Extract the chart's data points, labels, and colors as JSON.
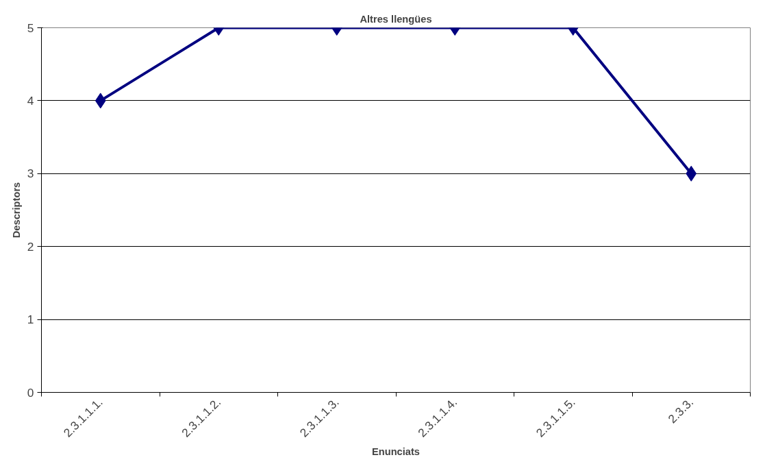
{
  "chart_data": {
    "type": "line",
    "title": "Altres llengües",
    "xlabel": "Enunciats",
    "ylabel": "Descriptors",
    "categories": [
      "2.3.1.1.1.",
      "2.3.1.1.2.",
      "2.3.1.1.3.",
      "2.3.1.1.4.",
      "2.3.1.1.5.",
      "2.3.3."
    ],
    "series": [
      {
        "color": "#000080",
        "values": [
          4,
          5,
          5,
          5,
          5,
          3
        ]
      }
    ],
    "ylim": [
      0,
      5
    ],
    "yticks": [
      0,
      1,
      2,
      3,
      4,
      5
    ],
    "grid": "y",
    "marker": "diamond",
    "line_style": "solid"
  }
}
